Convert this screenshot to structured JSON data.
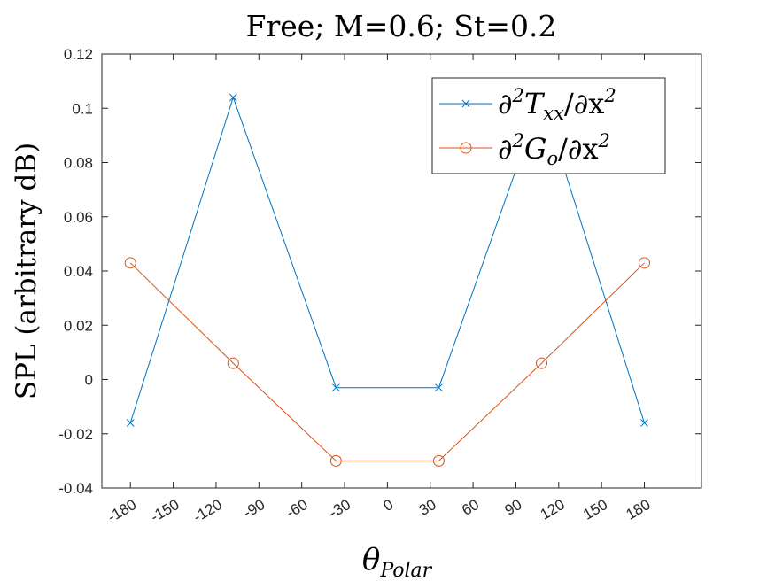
{
  "chart_data": {
    "type": "line",
    "title": "Free; M=0.6; St=0.2",
    "ylabel": "SPL (arbitrary dB)",
    "xlabel": {
      "main": "θ",
      "sub": "Polar"
    },
    "xlim": [
      -200,
      220
    ],
    "ylim": [
      -0.04,
      0.12
    ],
    "xticks": [
      -180,
      -150,
      -120,
      -90,
      -60,
      -30,
      0,
      30,
      60,
      90,
      120,
      150,
      180
    ],
    "yticks": [
      -0.04,
      -0.02,
      0,
      0.02,
      0.04,
      0.06,
      0.08,
      0.1,
      0.12
    ],
    "ytick_labels": [
      "-0.04",
      "-0.02",
      "0",
      "0.02",
      "0.04",
      "0.06",
      "0.08",
      "0.1",
      "0.12"
    ],
    "grid": false,
    "legend_position": "top-right",
    "series": [
      {
        "name": "∂²T_xx/∂x²",
        "legend": {
          "pre": "∂",
          "sup1": "2",
          "mid": "T",
          "sub": "xx",
          "post": "/∂x",
          "sup2": "2"
        },
        "marker": "x",
        "color": "#0072BD",
        "x": [
          -180,
          -108,
          -36,
          36,
          108,
          180
        ],
        "y": [
          -0.016,
          0.104,
          -0.003,
          -0.003,
          0.104,
          -0.016
        ]
      },
      {
        "name": "∂²G_o/∂x²",
        "legend": {
          "pre": "∂",
          "sup1": "2",
          "mid": "G",
          "sub": "o",
          "post": "/∂x",
          "sup2": "2"
        },
        "marker": "o",
        "color": "#D95319",
        "x": [
          -180,
          -108,
          -36,
          36,
          108,
          180
        ],
        "y": [
          0.043,
          0.006,
          -0.03,
          -0.03,
          0.006,
          0.043
        ]
      }
    ]
  }
}
